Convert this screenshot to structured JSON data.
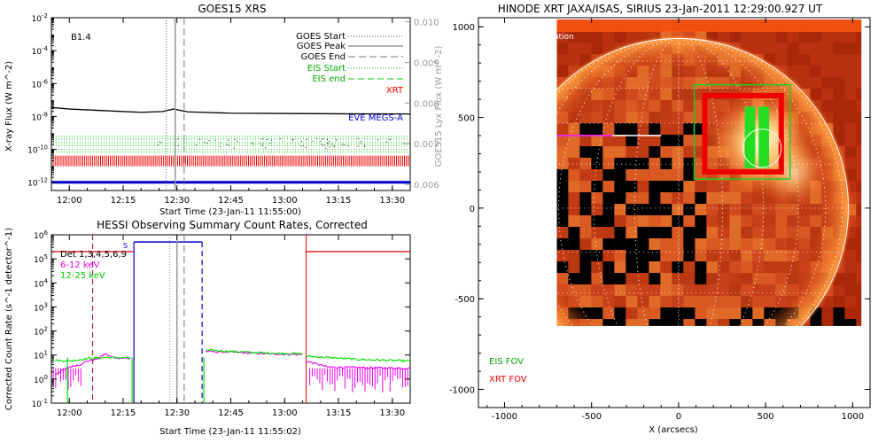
{
  "chart_data": [
    {
      "type": "line",
      "title": "GOES15 XRS",
      "xlabel": "Start Time (23-Jan-11 11:55:00)",
      "ylabel": "X-ray Flux (W m^-2)",
      "y2label": "GOES15 Lyx Flux (W m^-2)",
      "x_ticks": [
        "12:00",
        "12:15",
        "12:30",
        "12:45",
        "13:00",
        "13:15",
        "13:30"
      ],
      "x_tick_minutes": [
        0,
        15,
        30,
        45,
        60,
        75,
        90
      ],
      "x_range_minutes": [
        -5,
        95
      ],
      "y_ticks": [
        "10^-2",
        "10^-4",
        "10^-6",
        "10^-8",
        "10^-10",
        "10^-12"
      ],
      "y_exponents": [
        -2,
        -4,
        -6,
        -8,
        -10,
        -12
      ],
      "ylim_log10": [
        -12.5,
        -2
      ],
      "y2_ticks": [
        "0.010",
        "0.009",
        "0.008",
        "0.007",
        "0.006"
      ],
      "y2_values": [
        0.01,
        0.009,
        0.008,
        0.007,
        0.006
      ],
      "y2lim": [
        0.00585,
        0.0101
      ],
      "class_label": "B1.4",
      "legend": {
        "goes_start": "GOES Start",
        "goes_peak": "GOES Peak",
        "goes_end": "GOES End",
        "eis_start": "EIS Start",
        "eis_end": "EIS end",
        "xrt": "XRT",
        "eve": "EVE MEGS-A"
      },
      "events_minutes": {
        "goes_start": 27,
        "goes_peak": 29.5,
        "goes_end": 32
      },
      "series": [
        {
          "name": "GOES long",
          "color": "#000000",
          "log10_flux": [
            [
              -5,
              -7.45
            ],
            [
              0,
              -7.55
            ],
            [
              10,
              -7.65
            ],
            [
              20,
              -7.75
            ],
            [
              26,
              -7.7
            ],
            [
              29,
              -7.55
            ],
            [
              33,
              -7.72
            ],
            [
              45,
              -7.8
            ],
            [
              60,
              -7.82
            ],
            [
              75,
              -7.84
            ],
            [
              95,
              -7.85
            ]
          ]
        },
        {
          "name": "GOES short",
          "color": "#000000",
          "log10_flux_approx": -9.6,
          "range_minutes": [
            24,
            95
          ]
        },
        {
          "name": "EIS",
          "color": "#00cc00",
          "log10_flux_levels": [
            -9.2,
            -9.6,
            -10.0
          ]
        },
        {
          "name": "XRT",
          "color": "#ee0000",
          "log10_flux": -10.7
        },
        {
          "name": "EVE MEGS-A",
          "color": "#0000cc",
          "log10_flux": -12.0
        }
      ]
    },
    {
      "type": "line",
      "title": "HESSI Observing Summary Count Rates, Corrected",
      "xlabel": "Start Time (23-Jan-11 11:55:02)",
      "ylabel": "Corrected Count Rate (s^-1 detector^-1)",
      "x_ticks": [
        "12:00",
        "12:15",
        "12:30",
        "12:45",
        "13:00",
        "13:15",
        "13:30"
      ],
      "x_tick_minutes": [
        0,
        15,
        30,
        45,
        60,
        75,
        90
      ],
      "x_range_minutes": [
        -5,
        95
      ],
      "y_ticks": [
        "10^6",
        "10^5",
        "10^4",
        "10^3",
        "10^2",
        "10^1",
        "10^0",
        "10^-1"
      ],
      "y_exponents": [
        6,
        5,
        4,
        3,
        2,
        1,
        0,
        -1
      ],
      "ylim_log10": [
        -1,
        6
      ],
      "legend": {
        "detectors": "Det 1,3,4,5,6,9",
        "band1": "6-12 keV",
        "band2": "12-25 keV",
        "saa": "S"
      },
      "events_minutes": {
        "dashed_red": 6.5,
        "blue_start": 18,
        "blue_end": 37,
        "gray1": 28,
        "gray2": 30,
        "gray_dash": 32,
        "red_solid": 66
      },
      "series": [
        {
          "name": "6-12 keV",
          "color": "#ee00ee",
          "segments": [
            [
              [
                -4,
                0.2
              ],
              [
                0,
                0.5
              ],
              [
                3,
                0.6
              ],
              [
                5,
                0.75
              ],
              [
                8,
                0.85
              ],
              [
                10,
                1.05
              ],
              [
                12,
                0.9
              ],
              [
                17,
                0.85
              ]
            ],
            [
              [
                38,
                1.15
              ],
              [
                45,
                1.12
              ],
              [
                55,
                1.05
              ],
              [
                65,
                1.02
              ]
            ],
            [
              [
                66,
                0.75
              ],
              [
                72,
                0.5
              ],
              [
                80,
                0.48
              ],
              [
                95,
                0.45
              ]
            ]
          ]
        },
        {
          "name": "12-25 keV",
          "color": "#00dd00",
          "segments": [
            [
              [
                -4,
                0.78
              ],
              [
                0,
                0.75
              ],
              [
                5,
                0.85
              ],
              [
                10,
                0.9
              ],
              [
                17,
                0.88
              ]
            ],
            [
              [
                38,
                1.2
              ],
              [
                45,
                1.15
              ],
              [
                55,
                1.08
              ],
              [
                65,
                1.05
              ]
            ],
            [
              [
                66,
                0.95
              ],
              [
                72,
                0.9
              ],
              [
                80,
                0.82
              ],
              [
                95,
                0.75
              ]
            ]
          ]
        },
        {
          "name": "eclipse/offset",
          "color": "#ee0000",
          "log10_rate": 5.3
        },
        {
          "name": "SAA",
          "color": "#0000cc",
          "log10_rate": 5.7
        }
      ]
    },
    {
      "type": "image",
      "title": "HINODE XRT JAXA/ISAS, SIRIUS 23-Jan-2011 12:29:00.927 UT",
      "xlabel": "X (arcsecs)",
      "ylabel": "",
      "x_ticks": [
        "-1000",
        "-500",
        "0",
        "500",
        "1000"
      ],
      "x_values": [
        -1000,
        -500,
        0,
        500,
        1000
      ],
      "y_ticks": [
        "1000",
        "500",
        "0",
        "-500",
        "-1000"
      ],
      "y_values": [
        1000,
        500,
        0,
        -500,
        -1000
      ],
      "x_range": [
        -1150,
        1100
      ],
      "y_range": [
        -1100,
        1050
      ],
      "image_extent": {
        "x": [
          -700,
          1050
        ],
        "y": [
          -650,
          1040
        ]
      },
      "corner_label": "cation",
      "legend": {
        "eis": "EIS FOV",
        "xrt": "XRT FOV"
      },
      "fov": {
        "eis": {
          "x": [
            90,
            640
          ],
          "y": [
            160,
            680
          ]
        },
        "xrt": {
          "x": [
            150,
            590
          ],
          "y": [
            200,
            620
          ]
        },
        "eis_slits": {
          "x": [
            [
              380,
              440
            ],
            [
              460,
              520
            ]
          ],
          "y": [
            220,
            560
          ]
        },
        "circle": {
          "x": 480,
          "y": 330,
          "r": 110
        }
      },
      "limb_radius": 975
    }
  ]
}
